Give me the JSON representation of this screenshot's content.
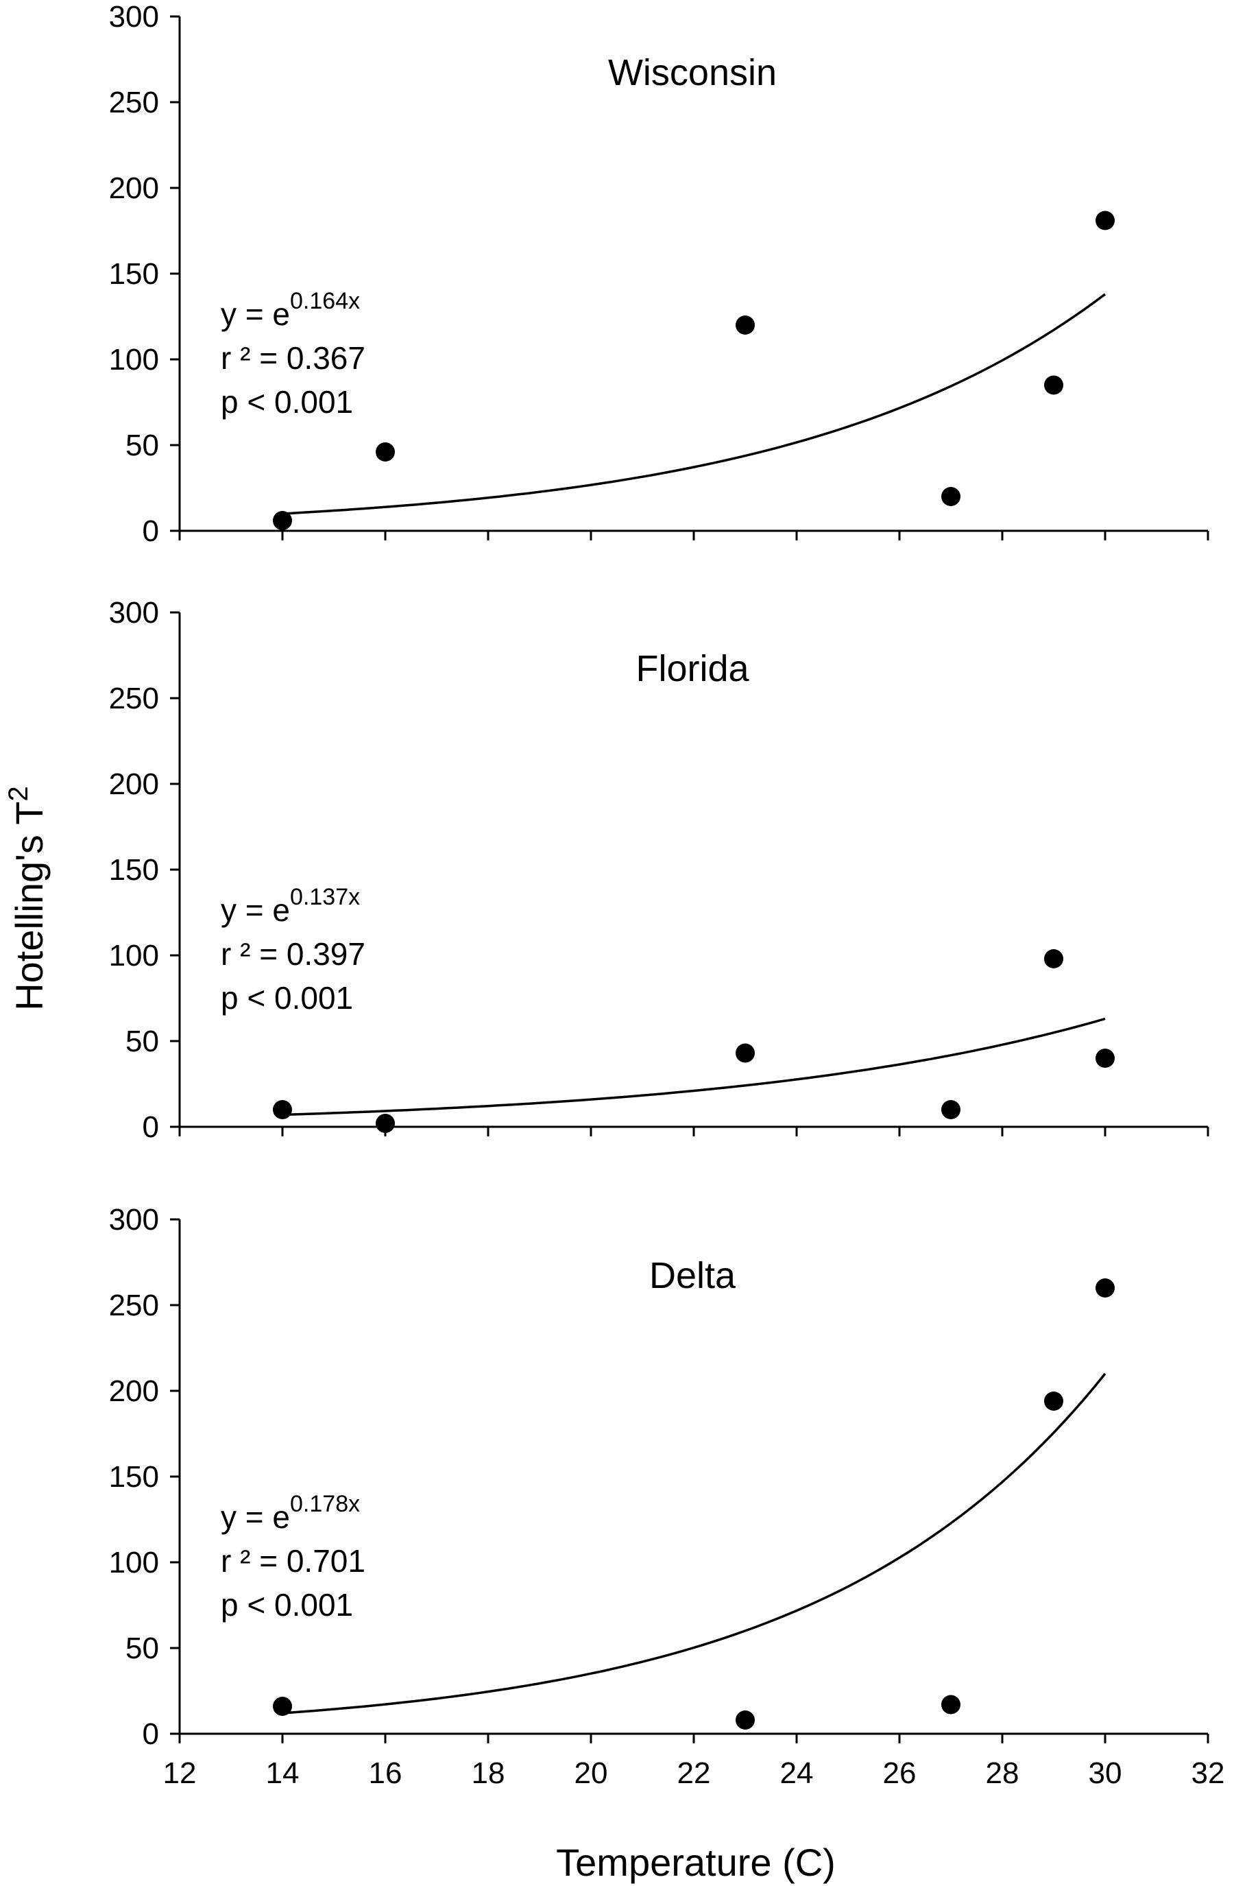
{
  "figure": {
    "ylabel": "Hotelling's T",
    "ylabel_sup": "2",
    "xlabel": "Temperature (C)"
  },
  "chart_data": [
    {
      "type": "scatter",
      "title": "Wisconsin",
      "xlabel": "Temperature (C)",
      "ylabel": "Hotelling's T2",
      "xlim": [
        12,
        32
      ],
      "ylim": [
        0,
        300
      ],
      "x_ticks": [
        12,
        14,
        16,
        18,
        20,
        22,
        24,
        26,
        28,
        30,
        32
      ],
      "y_ticks": [
        0,
        50,
        100,
        150,
        200,
        250,
        300
      ],
      "x_tick_labels_shown": false,
      "grid": false,
      "series": [
        {
          "x": [
            14,
            16,
            23,
            27,
            29,
            30
          ],
          "y": [
            6,
            46,
            120,
            20,
            85,
            181
          ]
        }
      ],
      "fit": {
        "type": "exponential",
        "coefficient": 0.164,
        "x_range": [
          14,
          30
        ],
        "y_range": [
          10,
          138
        ]
      },
      "annotation": {
        "eq_base": "y = e",
        "eq_exponent": "0.164x",
        "r2": "r ² = 0.367",
        "p": "p < 0.001"
      }
    },
    {
      "type": "scatter",
      "title": "Florida",
      "xlabel": "Temperature (C)",
      "ylabel": "Hotelling's T2",
      "xlim": [
        12,
        32
      ],
      "ylim": [
        0,
        300
      ],
      "x_ticks": [
        12,
        14,
        16,
        18,
        20,
        22,
        24,
        26,
        28,
        30,
        32
      ],
      "y_ticks": [
        0,
        50,
        100,
        150,
        200,
        250,
        300
      ],
      "x_tick_labels_shown": false,
      "grid": false,
      "series": [
        {
          "x": [
            14,
            16,
            23,
            27,
            29,
            30
          ],
          "y": [
            10,
            2,
            43,
            10,
            98,
            40
          ]
        }
      ],
      "fit": {
        "type": "exponential",
        "coefficient": 0.137,
        "x_range": [
          14,
          30
        ],
        "y_range": [
          7,
          63
        ]
      },
      "annotation": {
        "eq_base": "y = e",
        "eq_exponent": "0.137x",
        "r2": "r ² = 0.397",
        "p": "p < 0.001"
      }
    },
    {
      "type": "scatter",
      "title": "Delta",
      "xlabel": "Temperature (C)",
      "ylabel": "Hotelling's T2",
      "xlim": [
        12,
        32
      ],
      "ylim": [
        0,
        300
      ],
      "x_ticks": [
        12,
        14,
        16,
        18,
        20,
        22,
        24,
        26,
        28,
        30,
        32
      ],
      "y_ticks": [
        0,
        50,
        100,
        150,
        200,
        250,
        300
      ],
      "x_tick_labels_shown": true,
      "grid": false,
      "series": [
        {
          "x": [
            14,
            23,
            27,
            29,
            30
          ],
          "y": [
            16,
            8,
            17,
            194,
            260
          ]
        }
      ],
      "fit": {
        "type": "exponential",
        "coefficient": 0.178,
        "x_range": [
          14,
          30
        ],
        "y_range": [
          12,
          210
        ]
      },
      "annotation": {
        "eq_base": "y = e",
        "eq_exponent": "0.178x",
        "r2": "r ² = 0.701",
        "p": "p < 0.001"
      }
    }
  ]
}
